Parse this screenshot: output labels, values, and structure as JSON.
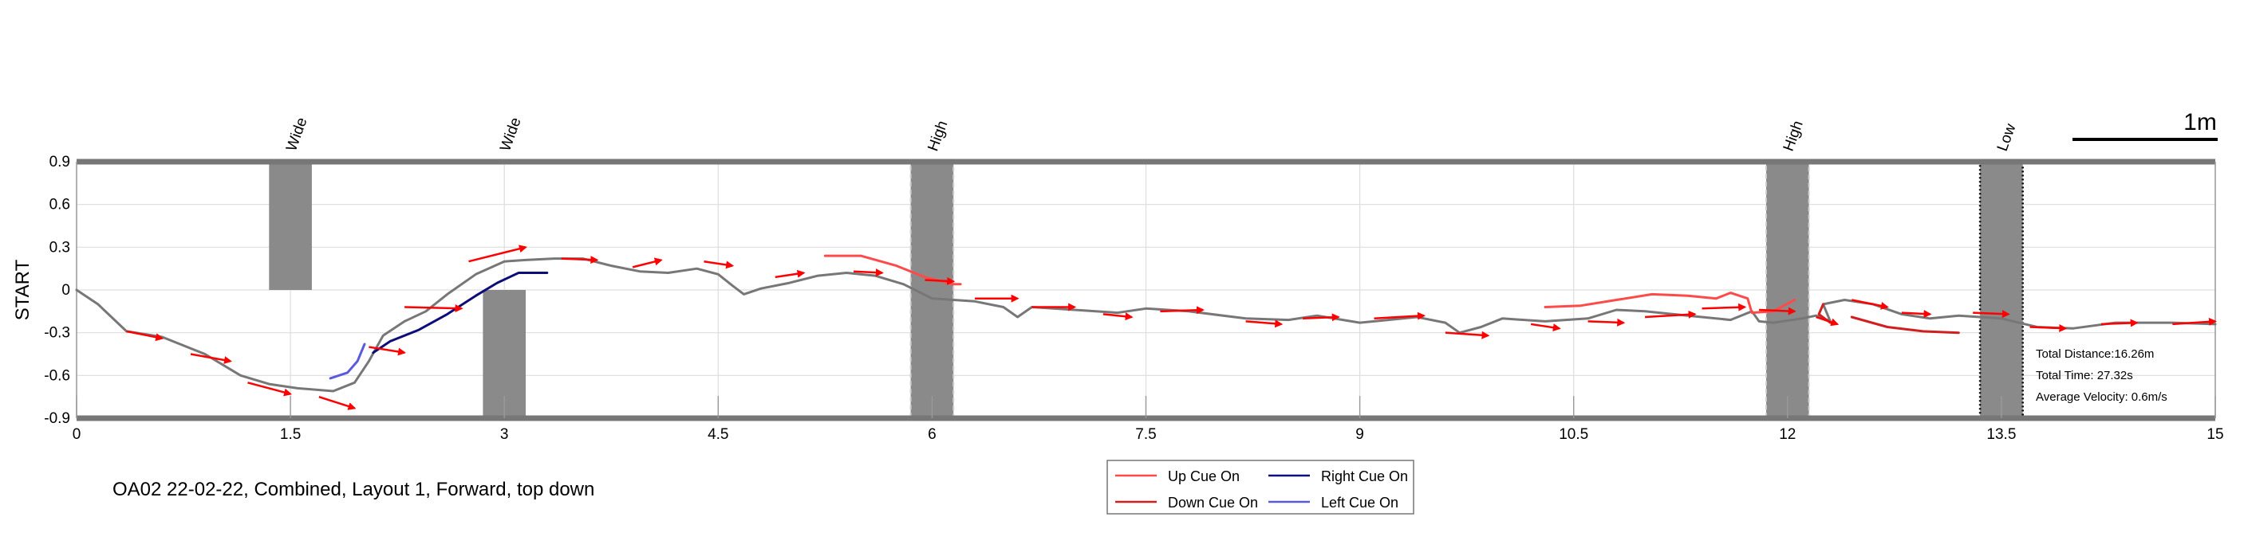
{
  "caption": "OA02 22-02-22, Combined, Layout 1, Forward, top down",
  "scale_bar_label": "1m",
  "stats": {
    "total_distance": "Total Distance:16.26m",
    "total_time": "Total Time: 27.32s",
    "average_velocity": "Average Velocity: 0.6m/s"
  },
  "colors": {
    "up_cue": "#ff4a4a",
    "down_cue": "#d11f1f",
    "right_cue": "#0d0d7a",
    "left_cue": "#5a5adf",
    "path": "#777777",
    "arrow": "#ff0000",
    "obstacle": "#8a8a8a",
    "frame": "#777777",
    "grid": "#dddddd"
  },
  "chart_data": {
    "type": "line",
    "ylabel": "START",
    "xlabel": "",
    "xlim": [
      0,
      15
    ],
    "ylim": [
      -0.9,
      0.9
    ],
    "xticks": [
      "0",
      "1.5",
      "3",
      "4.5",
      "6",
      "7.5",
      "9",
      "10.5",
      "12",
      "13.5",
      "15"
    ],
    "yticks": [
      "0.9",
      "0.6",
      "0.3",
      "0",
      "-0.3",
      "-0.6",
      "-0.9"
    ],
    "legend": [
      {
        "label": "Up Cue On",
        "color_key": "up_cue"
      },
      {
        "label": "Down Cue On",
        "color_key": "down_cue"
      },
      {
        "label": "Right Cue On",
        "color_key": "right_cue"
      },
      {
        "label": "Left Cue On",
        "color_key": "left_cue"
      }
    ],
    "obstacles": [
      {
        "label": "Wide",
        "x": [
          1.35,
          1.65
        ],
        "y": [
          0,
          0.9
        ],
        "style": "solid"
      },
      {
        "label": "Wide",
        "x": [
          2.85,
          3.15
        ],
        "y": [
          -0.9,
          0
        ],
        "style": "solid"
      },
      {
        "label": "High",
        "x": [
          5.85,
          6.15
        ],
        "y": [
          -0.9,
          0.9
        ],
        "style": "dashed"
      },
      {
        "label": "High",
        "x": [
          11.85,
          12.15
        ],
        "y": [
          -0.9,
          0.9
        ],
        "style": "dashed"
      },
      {
        "label": "Low",
        "x": [
          13.35,
          13.65
        ],
        "y": [
          -0.9,
          0.9
        ],
        "style": "dotted"
      }
    ],
    "series": [
      {
        "color_key": "path",
        "points": [
          [
            0,
            0
          ],
          [
            0.15,
            -0.1
          ],
          [
            0.35,
            -0.29
          ],
          [
            0.6,
            -0.33
          ],
          [
            0.9,
            -0.45
          ],
          [
            1.15,
            -0.6
          ],
          [
            1.35,
            -0.66
          ],
          [
            1.55,
            -0.69
          ],
          [
            1.8,
            -0.71
          ],
          [
            1.95,
            -0.65
          ],
          [
            2.05,
            -0.5
          ],
          [
            2.15,
            -0.32
          ],
          [
            2.3,
            -0.22
          ],
          [
            2.45,
            -0.15
          ],
          [
            2.6,
            -0.03
          ],
          [
            2.8,
            0.11
          ],
          [
            3.0,
            0.2
          ],
          [
            3.15,
            0.21
          ],
          [
            3.35,
            0.22
          ],
          [
            3.55,
            0.22
          ],
          [
            3.75,
            0.17
          ],
          [
            3.95,
            0.13
          ],
          [
            4.15,
            0.12
          ],
          [
            4.35,
            0.15
          ],
          [
            4.5,
            0.11
          ],
          [
            4.6,
            0.03
          ],
          [
            4.68,
            -0.03
          ],
          [
            4.8,
            0.01
          ],
          [
            5.0,
            0.05
          ],
          [
            5.2,
            0.1
          ],
          [
            5.4,
            0.12
          ],
          [
            5.6,
            0.1
          ],
          [
            5.8,
            0.04
          ],
          [
            6.0,
            -0.06
          ],
          [
            6.3,
            -0.08
          ],
          [
            6.5,
            -0.12
          ],
          [
            6.6,
            -0.19
          ],
          [
            6.7,
            -0.12
          ],
          [
            7.0,
            -0.14
          ],
          [
            7.3,
            -0.16
          ],
          [
            7.5,
            -0.13
          ],
          [
            7.8,
            -0.15
          ],
          [
            8.2,
            -0.2
          ],
          [
            8.5,
            -0.21
          ],
          [
            8.7,
            -0.18
          ],
          [
            9.0,
            -0.23
          ],
          [
            9.2,
            -0.21
          ],
          [
            9.4,
            -0.19
          ],
          [
            9.6,
            -0.23
          ],
          [
            9.7,
            -0.3
          ],
          [
            9.85,
            -0.26
          ],
          [
            10.0,
            -0.2
          ],
          [
            10.3,
            -0.22
          ],
          [
            10.6,
            -0.2
          ],
          [
            10.8,
            -0.14
          ],
          [
            11.0,
            -0.15
          ],
          [
            11.3,
            -0.18
          ],
          [
            11.6,
            -0.21
          ],
          [
            11.75,
            -0.15
          ],
          [
            11.8,
            -0.22
          ],
          [
            11.9,
            -0.23
          ],
          [
            12.1,
            -0.2
          ],
          [
            12.2,
            -0.18
          ],
          [
            12.3,
            -0.22
          ],
          [
            12.25,
            -0.1
          ],
          [
            12.4,
            -0.07
          ],
          [
            12.6,
            -0.1
          ],
          [
            12.8,
            -0.17
          ],
          [
            13.0,
            -0.2
          ],
          [
            13.2,
            -0.18
          ],
          [
            13.5,
            -0.2
          ],
          [
            13.75,
            -0.26
          ],
          [
            14.0,
            -0.27
          ],
          [
            14.3,
            -0.23
          ],
          [
            14.7,
            -0.23
          ],
          [
            15.0,
            -0.24
          ]
        ]
      },
      {
        "color_key": "right_cue",
        "points": [
          [
            2.08,
            -0.44
          ],
          [
            2.2,
            -0.36
          ],
          [
            2.4,
            -0.28
          ],
          [
            2.6,
            -0.17
          ],
          [
            2.8,
            -0.04
          ],
          [
            2.95,
            0.05
          ],
          [
            3.1,
            0.12
          ],
          [
            3.3,
            0.12
          ]
        ]
      },
      {
        "color_key": "left_cue",
        "points": [
          [
            1.78,
            -0.62
          ],
          [
            1.9,
            -0.58
          ],
          [
            1.97,
            -0.5
          ],
          [
            2.02,
            -0.38
          ]
        ]
      },
      {
        "color_key": "up_cue",
        "points": [
          [
            5.25,
            0.24
          ],
          [
            5.5,
            0.24
          ],
          [
            5.75,
            0.17
          ],
          [
            5.95,
            0.09
          ],
          [
            6.15,
            0.04
          ],
          [
            6.2,
            0.04
          ]
        ]
      },
      {
        "color_key": "up_cue",
        "points": [
          [
            10.3,
            -0.12
          ],
          [
            10.55,
            -0.11
          ],
          [
            10.8,
            -0.07
          ],
          [
            11.05,
            -0.03
          ],
          [
            11.3,
            -0.04
          ],
          [
            11.5,
            -0.06
          ],
          [
            11.6,
            -0.02
          ],
          [
            11.72,
            -0.06
          ],
          [
            11.75,
            -0.16
          ],
          [
            11.9,
            -0.15
          ],
          [
            12.05,
            -0.07
          ]
        ]
      },
      {
        "color_key": "down_cue",
        "points": [
          [
            12.45,
            -0.19
          ],
          [
            12.7,
            -0.26
          ],
          [
            12.95,
            -0.29
          ],
          [
            13.2,
            -0.3
          ]
        ]
      },
      {
        "color_key": "down_cue",
        "points": [
          [
            12.25,
            -0.1
          ],
          [
            12.22,
            -0.17
          ],
          [
            12.3,
            -0.23
          ]
        ]
      }
    ],
    "heading_arrows": [
      [
        [
          0.35,
          -0.29
        ],
        [
          0.6,
          -0.34
        ]
      ],
      [
        [
          0.8,
          -0.45
        ],
        [
          1.08,
          -0.5
        ]
      ],
      [
        [
          1.2,
          -0.65
        ],
        [
          1.5,
          -0.73
        ]
      ],
      [
        [
          1.7,
          -0.75
        ],
        [
          1.95,
          -0.83
        ]
      ],
      [
        [
          2.05,
          -0.4
        ],
        [
          2.3,
          -0.44
        ]
      ],
      [
        [
          2.3,
          -0.12
        ],
        [
          2.7,
          -0.13
        ]
      ],
      [
        [
          2.75,
          0.2
        ],
        [
          3.15,
          0.3
        ]
      ],
      [
        [
          3.4,
          0.22
        ],
        [
          3.65,
          0.21
        ]
      ],
      [
        [
          3.9,
          0.16
        ],
        [
          4.1,
          0.21
        ]
      ],
      [
        [
          4.4,
          0.2
        ],
        [
          4.6,
          0.17
        ]
      ],
      [
        [
          4.9,
          0.09
        ],
        [
          5.1,
          0.12
        ]
      ],
      [
        [
          5.45,
          0.13
        ],
        [
          5.65,
          0.12
        ]
      ],
      [
        [
          5.95,
          0.07
        ],
        [
          6.15,
          0.06
        ]
      ],
      [
        [
          6.3,
          -0.06
        ],
        [
          6.6,
          -0.06
        ]
      ],
      [
        [
          6.7,
          -0.12
        ],
        [
          7.0,
          -0.12
        ]
      ],
      [
        [
          7.2,
          -0.17
        ],
        [
          7.4,
          -0.19
        ]
      ],
      [
        [
          7.6,
          -0.15
        ],
        [
          7.9,
          -0.14
        ]
      ],
      [
        [
          8.2,
          -0.22
        ],
        [
          8.45,
          -0.24
        ]
      ],
      [
        [
          8.6,
          -0.2
        ],
        [
          8.85,
          -0.19
        ]
      ],
      [
        [
          9.1,
          -0.2
        ],
        [
          9.45,
          -0.18
        ]
      ],
      [
        [
          9.6,
          -0.3
        ],
        [
          9.9,
          -0.32
        ]
      ],
      [
        [
          10.2,
          -0.24
        ],
        [
          10.4,
          -0.27
        ]
      ],
      [
        [
          10.6,
          -0.22
        ],
        [
          10.85,
          -0.23
        ]
      ],
      [
        [
          11.0,
          -0.19
        ],
        [
          11.35,
          -0.17
        ]
      ],
      [
        [
          11.4,
          -0.13
        ],
        [
          11.7,
          -0.12
        ]
      ],
      [
        [
          11.8,
          -0.14
        ],
        [
          12.05,
          -0.15
        ]
      ],
      [
        [
          12.2,
          -0.19
        ],
        [
          12.35,
          -0.24
        ]
      ],
      [
        [
          12.45,
          -0.07
        ],
        [
          12.7,
          -0.12
        ]
      ],
      [
        [
          12.8,
          -0.16
        ],
        [
          13.0,
          -0.17
        ]
      ],
      [
        [
          13.3,
          -0.16
        ],
        [
          13.55,
          -0.17
        ]
      ],
      [
        [
          13.7,
          -0.26
        ],
        [
          13.95,
          -0.27
        ]
      ],
      [
        [
          14.2,
          -0.24
        ],
        [
          14.45,
          -0.23
        ]
      ],
      [
        [
          14.7,
          -0.24
        ],
        [
          15.0,
          -0.22
        ]
      ]
    ]
  }
}
